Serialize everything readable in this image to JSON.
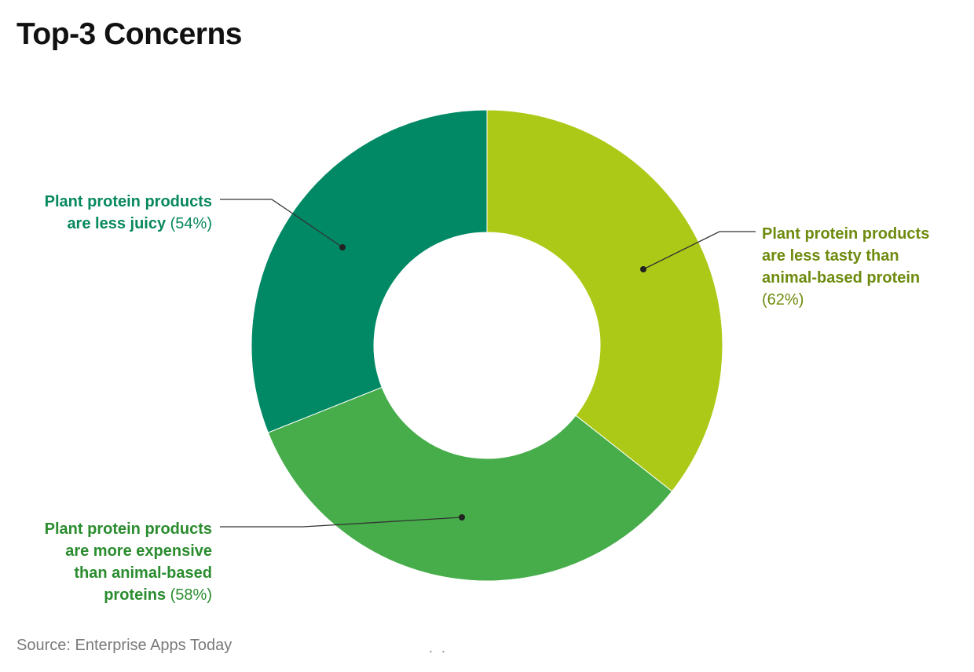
{
  "page": {
    "title": "Top-3 Concerns",
    "source": "Source: Enterprise Apps Today",
    "footer_mark": ". ."
  },
  "chart_data": {
    "type": "pie",
    "donut": true,
    "title": "Top-3 Concerns",
    "values": [
      62,
      58,
      54
    ],
    "categories": [
      "Plant protein products are less tasty than animal-based protein",
      "Plant protein products are more expensive than animal-based proteins",
      "Plant protein products are less juicy"
    ],
    "slices": [
      {
        "name": "Plant protein products are less tasty than animal-based protein",
        "value": 62,
        "value_label": "(62%)",
        "color": "#adc917",
        "label_color": "#6e8b0e",
        "label_lines": [
          "Plant protein products",
          "are less tasty than",
          "animal-based protein"
        ]
      },
      {
        "name": "Plant protein products are more expensive than animal-based proteins",
        "value": 58,
        "value_label": "(58%)",
        "color": "#46ad4a",
        "label_color": "#2a8c2e",
        "label_lines": [
          "Plant protein products",
          "are more expensive",
          "than animal-based",
          "proteins"
        ]
      },
      {
        "name": "Plant protein products are less juicy",
        "value": 54,
        "value_label": "(54%)",
        "color": "#008964",
        "label_color": "#07885f",
        "label_lines": [
          "Plant protein products",
          "are less juicy"
        ]
      }
    ],
    "legend": "none",
    "labels": "callouts"
  }
}
